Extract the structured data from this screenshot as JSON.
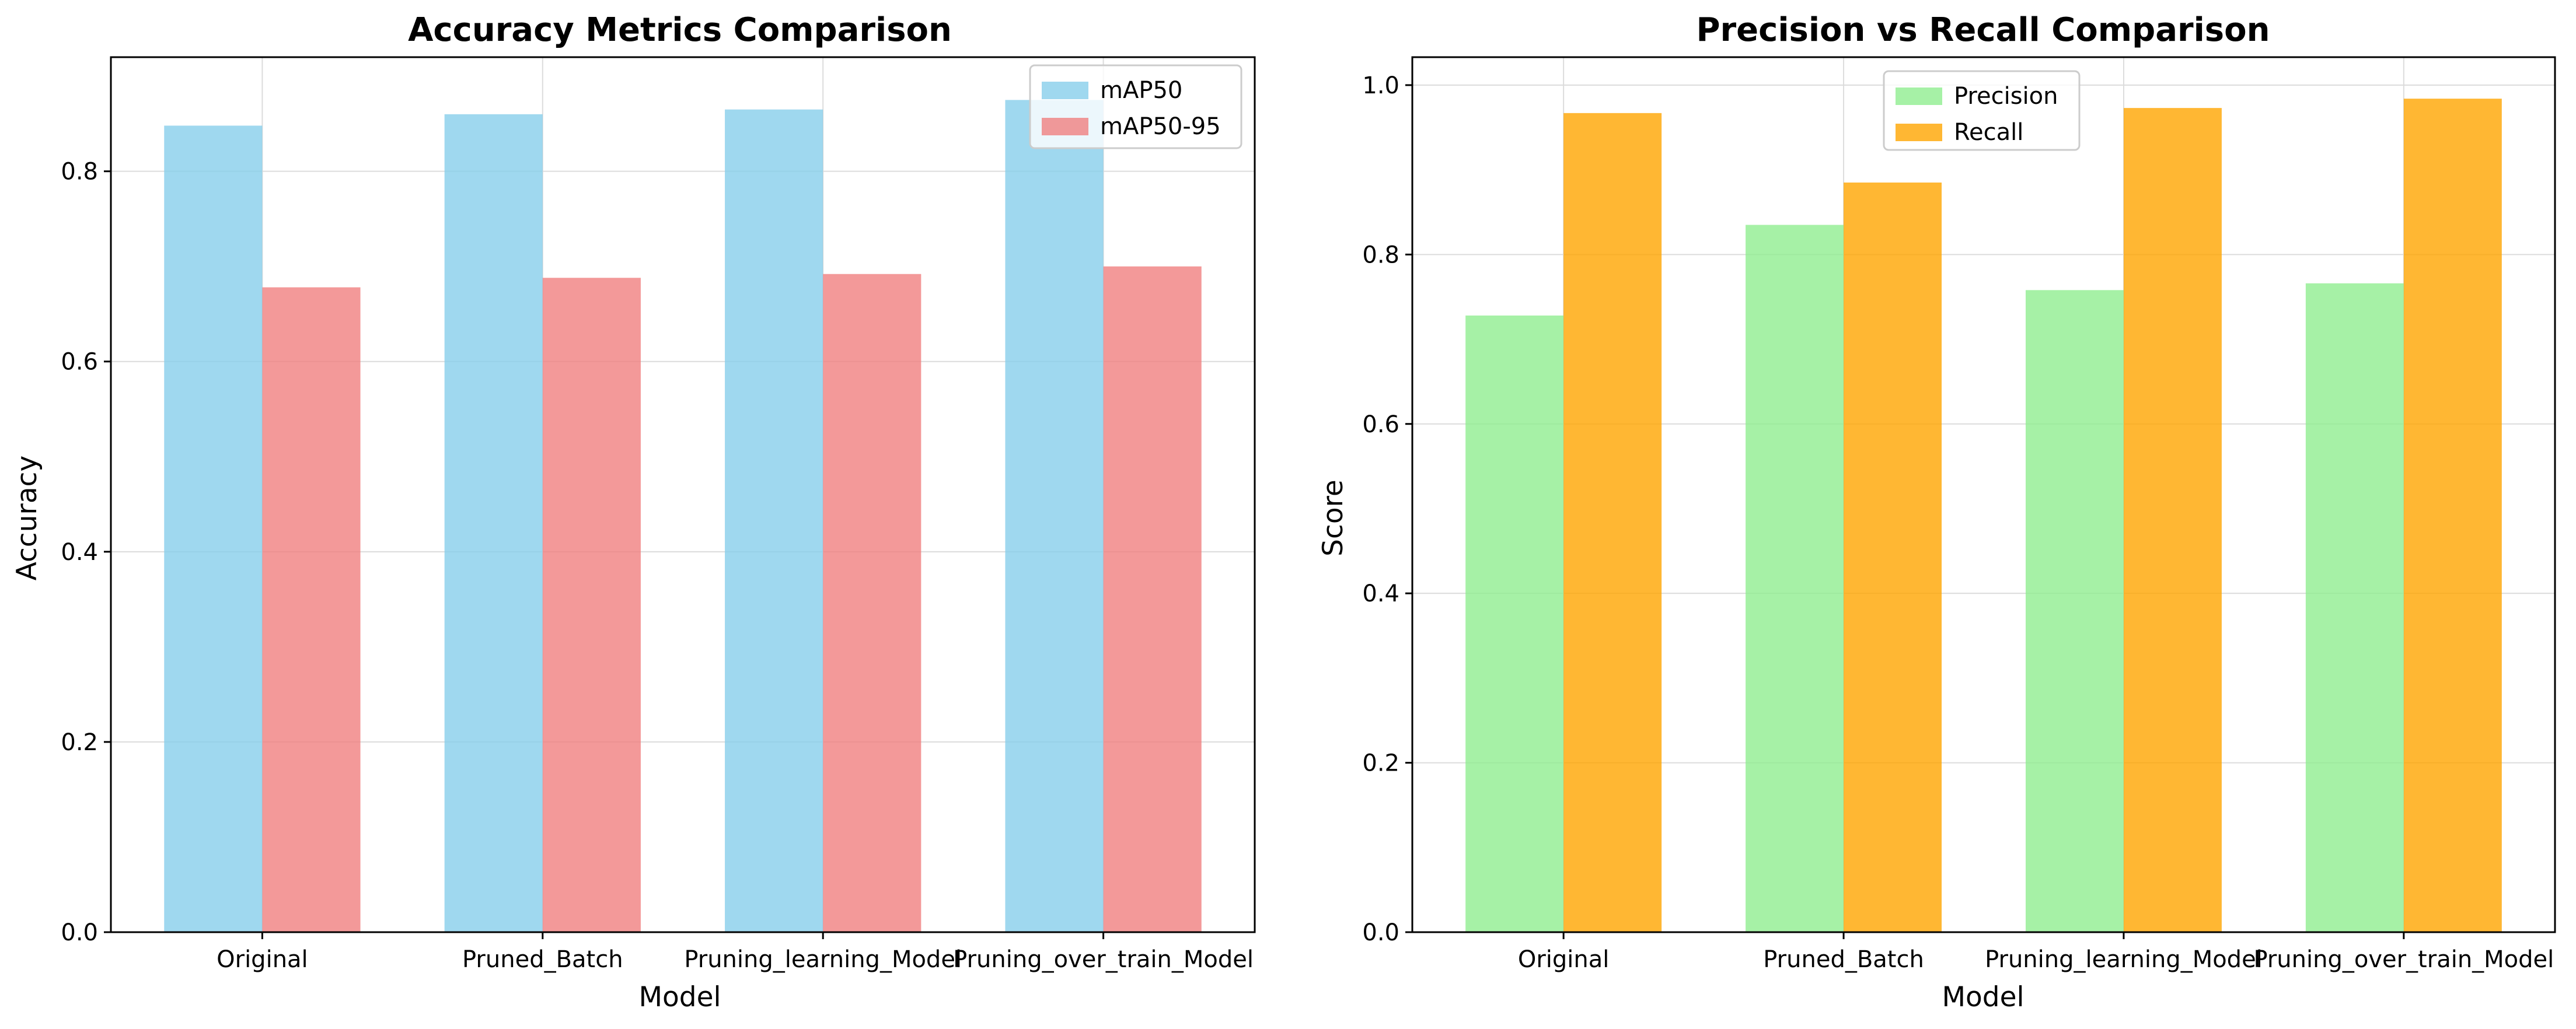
{
  "chart_data": [
    {
      "type": "bar",
      "title": "Accuracy Metrics Comparison",
      "xlabel": "Model",
      "ylabel": "Accuracy",
      "categories": [
        "Original",
        "Pruned_Batch",
        "Pruning_learning_Model",
        "Pruning_over_train_Model"
      ],
      "series": [
        {
          "name": "mAP50",
          "values": [
            0.848,
            0.86,
            0.865,
            0.875
          ],
          "color": "#87ceeb"
        },
        {
          "name": "mAP50-95",
          "values": [
            0.678,
            0.688,
            0.692,
            0.7
          ],
          "color": "#f08080"
        }
      ],
      "ylim": [
        0,
        0.92
      ],
      "yticks": [
        0.0,
        0.2,
        0.4,
        0.6,
        0.8
      ],
      "ytick_labels": [
        "0.0",
        "0.2",
        "0.4",
        "0.6",
        "0.8"
      ],
      "grid": true,
      "legend_position": "top-right"
    },
    {
      "type": "bar",
      "title": "Precision vs Recall Comparison",
      "xlabel": "Model",
      "ylabel": "Score",
      "categories": [
        "Original",
        "Pruned_Batch",
        "Pruning_learning_Model",
        "Pruning_over_train_Model"
      ],
      "series": [
        {
          "name": "Precision",
          "values": [
            0.728,
            0.835,
            0.758,
            0.766
          ],
          "color": "#90ee90"
        },
        {
          "name": "Recall",
          "values": [
            0.967,
            0.885,
            0.973,
            0.984
          ],
          "color": "#ffa500"
        }
      ],
      "ylim": [
        0,
        1.033
      ],
      "yticks": [
        0.0,
        0.2,
        0.4,
        0.6,
        0.8,
        1.0
      ],
      "ytick_labels": [
        "0.0",
        "0.2",
        "0.4",
        "0.6",
        "0.8",
        "1.0"
      ],
      "grid": true,
      "legend_position": "top-center"
    }
  ]
}
